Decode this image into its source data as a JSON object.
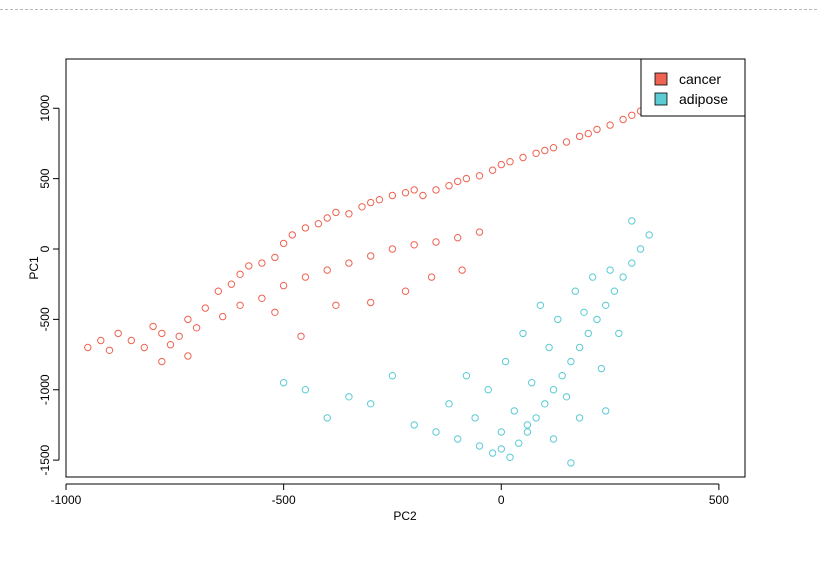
{
  "chart_data": {
    "type": "scatter",
    "title": "",
    "xlabel": "PC2",
    "ylabel": "PC1",
    "xlim": [
      -1000,
      560
    ],
    "ylim": [
      -1620,
      1350
    ],
    "xticks": [
      -1000,
      -500,
      0,
      500
    ],
    "yticks": [
      -1500,
      -1000,
      -500,
      0,
      500,
      1000
    ],
    "xtick_labels": [
      "-1000",
      "-500",
      "0",
      "500"
    ],
    "ytick_labels": [
      "-1500",
      "-1000",
      "-500",
      "0",
      "500",
      "1000"
    ],
    "marker": "open-circle",
    "legend": {
      "position": "top-right"
    },
    "series": [
      {
        "name": "cancer",
        "color": "#EE6352",
        "x": [
          -950,
          -920,
          -900,
          -880,
          -850,
          -820,
          -800,
          -780,
          -760,
          -740,
          -720,
          -700,
          -680,
          -650,
          -620,
          -600,
          -580,
          -550,
          -520,
          -500,
          -480,
          -450,
          -420,
          -400,
          -380,
          -350,
          -320,
          -300,
          -280,
          -250,
          -220,
          -200,
          -180,
          -150,
          -120,
          -100,
          -80,
          -50,
          -20,
          0,
          20,
          50,
          80,
          100,
          120,
          150,
          180,
          200,
          220,
          250,
          280,
          300,
          320,
          350,
          380,
          400,
          -600,
          -550,
          -500,
          -450,
          -400,
          -350,
          -300,
          -250,
          -200,
          -150,
          -100,
          -50,
          -780,
          -720,
          -640,
          -520,
          -460,
          -380,
          -300,
          -220,
          -160,
          -90
        ],
        "y": [
          -700,
          -650,
          -720,
          -600,
          -650,
          -700,
          -550,
          -600,
          -680,
          -620,
          -500,
          -560,
          -420,
          -300,
          -250,
          -180,
          -120,
          -100,
          -60,
          40,
          100,
          150,
          180,
          220,
          260,
          250,
          300,
          330,
          350,
          380,
          400,
          420,
          380,
          420,
          450,
          480,
          500,
          520,
          560,
          600,
          620,
          650,
          680,
          700,
          720,
          760,
          800,
          820,
          850,
          880,
          920,
          950,
          980,
          1000,
          1020,
          1050,
          -400,
          -350,
          -260,
          -200,
          -150,
          -100,
          -50,
          0,
          30,
          50,
          80,
          120,
          -800,
          -760,
          -480,
          -450,
          -620,
          -400,
          -380,
          -300,
          -200,
          -150
        ]
      },
      {
        "name": "adipose",
        "color": "#5BCBD4",
        "x": [
          -500,
          -450,
          -400,
          -350,
          -300,
          -250,
          -200,
          -150,
          -100,
          -50,
          -20,
          0,
          20,
          40,
          60,
          80,
          100,
          120,
          140,
          160,
          180,
          200,
          220,
          240,
          260,
          280,
          300,
          320,
          340,
          -60,
          -30,
          10,
          50,
          90,
          130,
          170,
          210,
          250,
          -120,
          -80,
          30,
          70,
          110,
          150,
          190,
          230,
          270,
          0,
          60,
          120,
          180,
          240,
          300,
          160
        ],
        "y": [
          -950,
          -1000,
          -1200,
          -1050,
          -1100,
          -900,
          -1250,
          -1300,
          -1350,
          -1400,
          -1450,
          -1420,
          -1480,
          -1380,
          -1300,
          -1200,
          -1100,
          -1000,
          -900,
          -800,
          -700,
          -600,
          -500,
          -400,
          -300,
          -200,
          -100,
          0,
          100,
          -1200,
          -1000,
          -800,
          -600,
          -400,
          -500,
          -300,
          -200,
          -150,
          -1100,
          -900,
          -1150,
          -950,
          -700,
          -1050,
          -450,
          -850,
          -600,
          -1300,
          -1250,
          -1350,
          -1200,
          -1150,
          200,
          -1520
        ]
      }
    ]
  }
}
